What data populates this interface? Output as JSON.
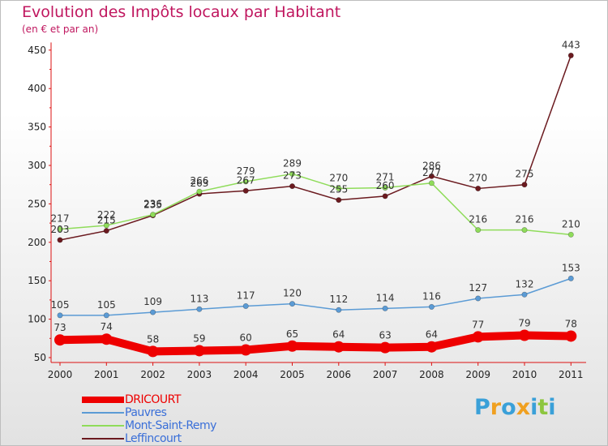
{
  "chart_data": {
    "type": "line",
    "title": "Evolution des Impôts locaux par Habitant",
    "subtitle": "(en € et par an)",
    "x": [
      "2000",
      "2001",
      "2002",
      "2003",
      "2004",
      "2005",
      "2006",
      "2007",
      "2008",
      "2009",
      "2010",
      "2011"
    ],
    "ylim": [
      50,
      460
    ],
    "yticks": [
      50,
      100,
      150,
      200,
      250,
      300,
      350,
      400,
      450
    ],
    "grid": false,
    "legend_position": "bottom-left",
    "series": [
      {
        "name": "Leffincourt",
        "color": "#6b1a1f",
        "values": [
          203,
          215,
          235,
          263,
          267,
          273,
          255,
          260,
          286,
          270,
          275,
          443
        ]
      },
      {
        "name": "Mont-Saint-Remy",
        "color": "#8fdc5a",
        "values": [
          217,
          222,
          236,
          266,
          279,
          289,
          270,
          271,
          277,
          216,
          216,
          210
        ]
      },
      {
        "name": "Pauvres",
        "color": "#5b9bd5",
        "values": [
          105,
          105,
          109,
          113,
          117,
          120,
          112,
          114,
          116,
          127,
          132,
          153
        ]
      },
      {
        "name": "DRICOURT",
        "color": "#ee0000",
        "values": [
          73,
          74,
          58,
          59,
          60,
          65,
          64,
          63,
          64,
          77,
          79,
          78
        ]
      }
    ],
    "legend": [
      "DRICOURT",
      "Pauvres",
      "Mont-Saint-Remy",
      "Leffincourt"
    ]
  },
  "logo": {
    "letters": [
      "P",
      "r",
      "o",
      "x",
      "i",
      "t",
      "i"
    ],
    "colors": [
      "#3aa0d8",
      "#f0a020",
      "#3aa0d8",
      "#f0a020",
      "#3aa0d8",
      "#8dc63f",
      "#3aa0d8"
    ]
  }
}
